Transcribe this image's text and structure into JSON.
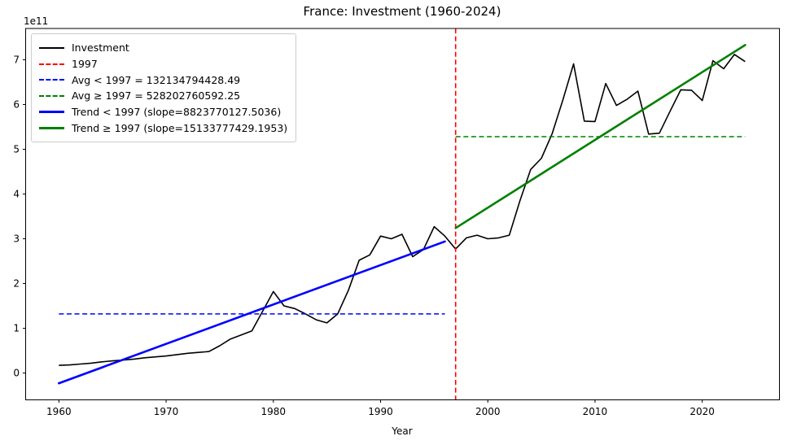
{
  "chart_data": {
    "type": "line",
    "title": "France: Investment (1960-2024)",
    "xlabel": "Year",
    "ylabel": "",
    "y_offset_label": "1e11",
    "values_unit": "1e11 (all y values below are in units of 1e11)",
    "grid": false,
    "legend_position": "upper-left",
    "xlim": [
      1956.9,
      2027.2
    ],
    "ylim": [
      -0.6,
      7.7
    ],
    "xticks": [
      1960,
      1970,
      1980,
      1990,
      2000,
      2010,
      2020
    ],
    "yticks": [
      0,
      1,
      2,
      3,
      4,
      5,
      6,
      7
    ],
    "x": [
      1960,
      1961,
      1962,
      1963,
      1964,
      1965,
      1966,
      1967,
      1968,
      1969,
      1970,
      1971,
      1972,
      1973,
      1974,
      1975,
      1976,
      1977,
      1978,
      1979,
      1980,
      1981,
      1982,
      1983,
      1984,
      1985,
      1986,
      1987,
      1988,
      1989,
      1990,
      1991,
      1992,
      1993,
      1994,
      1995,
      1996,
      1997,
      1998,
      1999,
      2000,
      2001,
      2002,
      2003,
      2004,
      2005,
      2006,
      2007,
      2008,
      2009,
      2010,
      2011,
      2012,
      2013,
      2014,
      2015,
      2016,
      2017,
      2018,
      2019,
      2020,
      2021,
      2022,
      2023,
      2024
    ],
    "series": [
      {
        "name": "Investment",
        "color": "#000000",
        "style": "solid",
        "width": 1.6,
        "values": [
          0.17,
          0.18,
          0.2,
          0.22,
          0.25,
          0.27,
          0.29,
          0.31,
          0.34,
          0.36,
          0.38,
          0.41,
          0.44,
          0.46,
          0.48,
          0.61,
          0.76,
          0.85,
          0.94,
          1.38,
          1.82,
          1.5,
          1.44,
          1.32,
          1.19,
          1.12,
          1.32,
          1.85,
          2.52,
          2.64,
          3.06,
          3.0,
          3.1,
          2.6,
          2.76,
          3.27,
          3.06,
          2.77,
          3.02,
          3.08,
          3.0,
          3.02,
          3.08,
          3.85,
          4.55,
          4.8,
          5.35,
          6.1,
          6.91,
          5.63,
          5.62,
          6.47,
          5.98,
          6.12,
          6.3,
          5.34,
          5.36,
          5.85,
          6.33,
          6.32,
          6.09,
          6.98,
          6.8,
          7.12,
          6.96
        ]
      }
    ],
    "annotations": {
      "vline_1997": {
        "x": 1997,
        "color": "#ff0000",
        "style": "dashed",
        "width": 1.6
      },
      "avg_before": {
        "y": 1.3213479442849,
        "x_start": 1960,
        "x_end": 1996,
        "color": "#0000ff",
        "style": "dashed",
        "width": 1.5
      },
      "avg_after": {
        "y": 5.2820276059225,
        "x_start": 1997,
        "x_end": 2024,
        "color": "#008000",
        "style": "dashed",
        "width": 1.5
      },
      "trend_before": {
        "x_start": 1960,
        "y_start": -0.23,
        "x_end": 1996,
        "y_end": 2.94,
        "color": "#0000ff",
        "style": "solid",
        "width": 2.6
      },
      "trend_after": {
        "x_start": 1997,
        "y_start": 3.24,
        "x_end": 2024,
        "y_end": 7.33,
        "color": "#008000",
        "style": "solid",
        "width": 2.6
      }
    },
    "legend": {
      "items": [
        {
          "label": "Investment",
          "color": "#000000",
          "dash": "solid",
          "thick": false
        },
        {
          "label": "1997",
          "color": "#ff0000",
          "dash": "dashed",
          "thick": false
        },
        {
          "label": "Avg < 1997 = 132134794428.49",
          "color": "#0000ff",
          "dash": "dashed",
          "thick": false
        },
        {
          "label": "Avg ≥ 1997 = 528202760592.25",
          "color": "#008000",
          "dash": "dashed",
          "thick": false
        },
        {
          "label": "Trend < 1997 (slope=8823770127.5036)",
          "color": "#0000ff",
          "dash": "solid",
          "thick": true
        },
        {
          "label": "Trend ≥ 1997 (slope=15133777429.1953)",
          "color": "#008000",
          "dash": "solid",
          "thick": true
        }
      ]
    }
  }
}
